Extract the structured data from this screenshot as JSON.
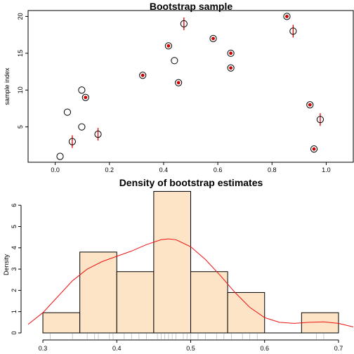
{
  "colors": {
    "axis": "#000000",
    "point_stroke": "#000000",
    "selected_fill": "#cc0000",
    "error_bar": "#dd0000",
    "hist_fill": "#fde4c6",
    "hist_stroke": "#000000",
    "density_line": "#ee1111",
    "rug": "#bbbbbb"
  },
  "chart_data": [
    {
      "type": "scatter",
      "title": "Bootstrap sample",
      "xlabel": "",
      "ylabel": "sample index",
      "xlim": [
        -0.1,
        1.1
      ],
      "ylim": [
        0.2,
        20.8
      ],
      "x_ticks": [
        0.0,
        0.2,
        0.4,
        0.6,
        0.8,
        1.0
      ],
      "x_tick_labels": [
        "0.0",
        "0.2",
        "0.4",
        "0.6",
        "0.8",
        "1.0"
      ],
      "y_ticks": [
        5,
        10,
        15,
        20
      ],
      "y_tick_labels": [
        "5",
        "10",
        "15",
        "20"
      ],
      "grid": false,
      "points": [
        {
          "x": 0.018,
          "y": 1,
          "selected": false,
          "reps": 0
        },
        {
          "x": 0.955,
          "y": 2,
          "selected": true,
          "reps": 1
        },
        {
          "x": 0.063,
          "y": 3,
          "selected": true,
          "reps": 3
        },
        {
          "x": 0.158,
          "y": 4,
          "selected": true,
          "reps": 3
        },
        {
          "x": 0.098,
          "y": 5,
          "selected": false,
          "reps": 0
        },
        {
          "x": 0.978,
          "y": 6,
          "selected": true,
          "reps": 3
        },
        {
          "x": 0.045,
          "y": 7,
          "selected": false,
          "reps": 0
        },
        {
          "x": 0.94,
          "y": 8,
          "selected": true,
          "reps": 1
        },
        {
          "x": 0.112,
          "y": 9,
          "selected": true,
          "reps": 1
        },
        {
          "x": 0.098,
          "y": 10,
          "selected": false,
          "reps": 0
        },
        {
          "x": 0.455,
          "y": 11,
          "selected": true,
          "reps": 1
        },
        {
          "x": 0.323,
          "y": 12,
          "selected": true,
          "reps": 1
        },
        {
          "x": 0.648,
          "y": 13,
          "selected": true,
          "reps": 1
        },
        {
          "x": 0.44,
          "y": 14,
          "selected": false,
          "reps": 0
        },
        {
          "x": 0.648,
          "y": 15,
          "selected": true,
          "reps": 1
        },
        {
          "x": 0.418,
          "y": 16,
          "selected": true,
          "reps": 1
        },
        {
          "x": 0.583,
          "y": 17,
          "selected": true,
          "reps": 1
        },
        {
          "x": 0.878,
          "y": 18,
          "selected": true,
          "reps": 3
        },
        {
          "x": 0.475,
          "y": 19,
          "selected": true,
          "reps": 3
        },
        {
          "x": 0.855,
          "y": 20,
          "selected": true,
          "reps": 1
        }
      ]
    },
    {
      "type": "bar",
      "subtype": "histogram",
      "title": "Density of bootstrap estimates",
      "xlabel": "",
      "ylabel": "Density",
      "xlim": [
        0.28,
        0.72
      ],
      "ylim": [
        0,
        6.7
      ],
      "x_ticks": [
        0.3,
        0.4,
        0.5,
        0.6,
        0.7
      ],
      "x_tick_labels": [
        "0.3",
        "0.4",
        "0.5",
        "0.6",
        "0.7"
      ],
      "y_ticks": [
        0,
        1,
        2,
        3,
        4,
        5,
        6
      ],
      "y_tick_labels": [
        "0",
        "1",
        "2",
        "3",
        "4",
        "5",
        "6"
      ],
      "grid": false,
      "bins": [
        {
          "from": 0.3,
          "to": 0.35,
          "density": 0.95
        },
        {
          "from": 0.35,
          "to": 0.4,
          "density": 3.8
        },
        {
          "from": 0.4,
          "to": 0.45,
          "density": 2.88
        },
        {
          "from": 0.45,
          "to": 0.5,
          "density": 6.65
        },
        {
          "from": 0.5,
          "to": 0.55,
          "density": 2.88
        },
        {
          "from": 0.55,
          "to": 0.6,
          "density": 1.9
        },
        {
          "from": 0.6,
          "to": 0.65,
          "density": 0
        },
        {
          "from": 0.65,
          "to": 0.7,
          "density": 0.95
        }
      ],
      "density_curve": {
        "x": [
          0.28,
          0.3,
          0.32,
          0.34,
          0.36,
          0.38,
          0.4,
          0.42,
          0.44,
          0.46,
          0.47,
          0.48,
          0.5,
          0.52,
          0.54,
          0.56,
          0.58,
          0.6,
          0.62,
          0.64,
          0.66,
          0.68,
          0.7,
          0.72
        ],
        "y": [
          0.4,
          0.95,
          1.7,
          2.45,
          3.0,
          3.35,
          3.6,
          3.85,
          4.15,
          4.38,
          4.42,
          4.38,
          4.05,
          3.45,
          2.7,
          1.9,
          1.2,
          0.72,
          0.5,
          0.45,
          0.5,
          0.52,
          0.45,
          0.28
        ]
      },
      "rug": [
        0.31,
        0.34,
        0.36,
        0.37,
        0.375,
        0.39,
        0.395,
        0.41,
        0.42,
        0.43,
        0.44,
        0.455,
        0.46,
        0.465,
        0.47,
        0.475,
        0.48,
        0.49,
        0.495,
        0.5,
        0.51,
        0.52,
        0.535,
        0.545,
        0.555,
        0.57,
        0.58,
        0.59,
        0.67,
        0.68
      ]
    }
  ]
}
